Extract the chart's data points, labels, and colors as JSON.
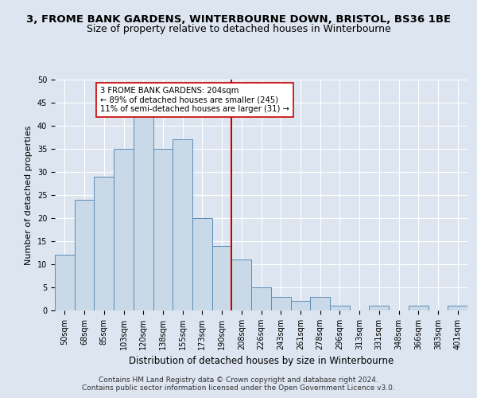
{
  "title1": "3, FROME BANK GARDENS, WINTERBOURNE DOWN, BRISTOL, BS36 1BE",
  "title2": "Size of property relative to detached houses in Winterbourne",
  "xlabel": "Distribution of detached houses by size in Winterbourne",
  "ylabel": "Number of detached properties",
  "bins": [
    "50sqm",
    "68sqm",
    "85sqm",
    "103sqm",
    "120sqm",
    "138sqm",
    "155sqm",
    "173sqm",
    "190sqm",
    "208sqm",
    "226sqm",
    "243sqm",
    "261sqm",
    "278sqm",
    "296sqm",
    "313sqm",
    "331sqm",
    "348sqm",
    "366sqm",
    "383sqm",
    "401sqm"
  ],
  "values": [
    12,
    24,
    29,
    35,
    42,
    35,
    37,
    20,
    14,
    11,
    5,
    3,
    2,
    3,
    1,
    0,
    1,
    0,
    1,
    0,
    1
  ],
  "bar_color": "#c9d9e8",
  "bar_edge_color": "#5b8db8",
  "vline_x_index": 8.5,
  "vline_color": "#cc0000",
  "annotation_text": "3 FROME BANK GARDENS: 204sqm\n← 89% of detached houses are smaller (245)\n11% of semi-detached houses are larger (31) →",
  "annotation_box_color": "#ffffff",
  "annotation_box_edge": "#cc0000",
  "ylim": [
    0,
    50
  ],
  "yticks": [
    0,
    5,
    10,
    15,
    20,
    25,
    30,
    35,
    40,
    45,
    50
  ],
  "footer": "Contains HM Land Registry data © Crown copyright and database right 2024.\nContains public sector information licensed under the Open Government Licence v3.0.",
  "bg_color": "#dde5f0",
  "grid_color": "#ffffff",
  "title1_fontsize": 9.5,
  "title2_fontsize": 9,
  "tick_fontsize": 7,
  "footer_fontsize": 6.5,
  "ylabel_fontsize": 8,
  "xlabel_fontsize": 8.5
}
